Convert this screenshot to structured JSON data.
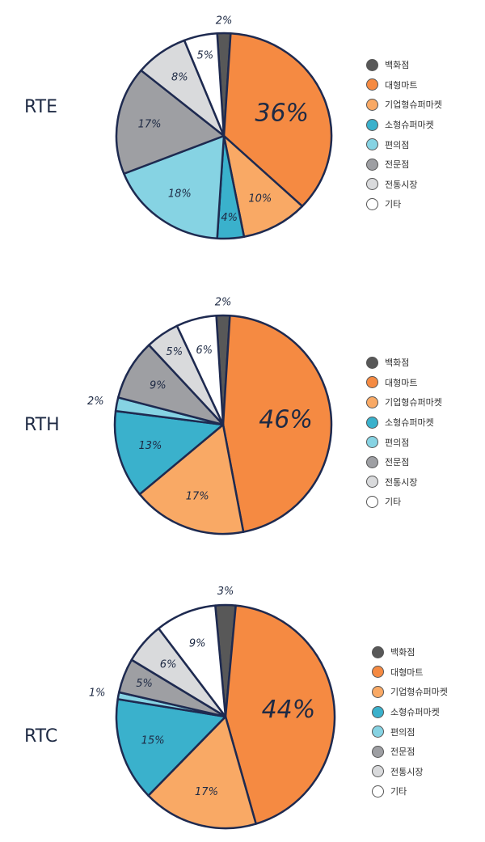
{
  "colors": {
    "outline": "#1e2a50",
    "department_store": "#585858",
    "hypermarket": "#f58a42",
    "corp_supermarket": "#f9a965",
    "small_supermarket": "#3ab1cc",
    "convenience_store": "#86d3e3",
    "specialty_store": "#9e9fa3",
    "traditional_market": "#d9dadc",
    "others": "#ffffff"
  },
  "chart_data": [
    {
      "type": "pie",
      "title": "RTE",
      "categories": [
        "백화점",
        "대형마트",
        "기업형슈퍼마켓",
        "소형슈퍼마켓",
        "편의점",
        "전문점",
        "전통시장",
        "기타"
      ],
      "values": [
        2,
        36,
        10,
        4,
        18,
        17,
        8,
        5
      ],
      "labels": [
        "2%",
        "36%",
        "10%",
        "4%",
        "18%",
        "17%",
        "8%",
        "5%"
      ],
      "legend": "right"
    },
    {
      "type": "pie",
      "title": "RTH",
      "categories": [
        "백화점",
        "대형마트",
        "기업형슈퍼마켓",
        "소형슈퍼마켓",
        "편의점",
        "전문점",
        "전통시장",
        "기타"
      ],
      "values": [
        2,
        46,
        17,
        13,
        2,
        9,
        5,
        6
      ],
      "labels": [
        "2%",
        "46%",
        "17%",
        "13%",
        "2%",
        "9%",
        "5%",
        "6%"
      ],
      "legend": "right"
    },
    {
      "type": "pie",
      "title": "RTC",
      "categories": [
        "백화점",
        "대형마트",
        "기업형슈퍼마켓",
        "소형슈퍼마켓",
        "편의점",
        "전문점",
        "전통시장",
        "기타"
      ],
      "values": [
        3,
        44,
        17,
        15,
        1,
        5,
        6,
        9
      ],
      "labels": [
        "3%",
        "44%",
        "17%",
        "15%",
        "1%",
        "5%",
        "6%",
        "9%"
      ],
      "legend": "right"
    }
  ]
}
